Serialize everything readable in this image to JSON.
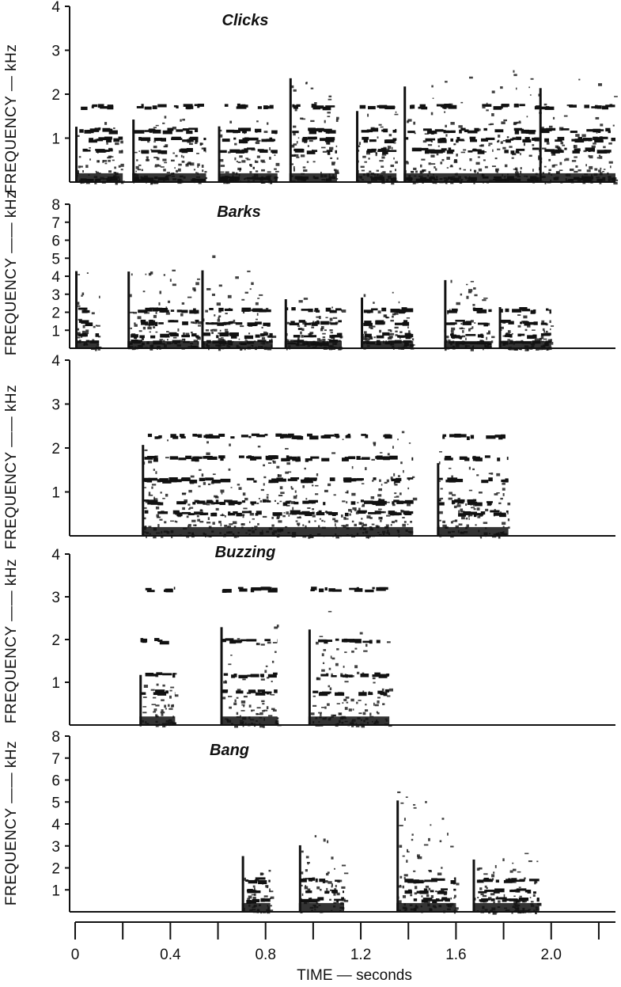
{
  "chart_data": [
    {
      "type": "heatmap",
      "title": "Clicks",
      "ylabel": "FREQUENCY — kHz",
      "ylim": [
        0,
        4
      ],
      "yticks": [
        1,
        2,
        3,
        4
      ],
      "xlim": [
        0,
        2.27
      ],
      "segments": [
        [
          0.0,
          0.2
        ],
        [
          0.24,
          0.55
        ],
        [
          0.6,
          0.85
        ],
        [
          0.9,
          1.1
        ],
        [
          1.18,
          1.35
        ],
        [
          1.38,
          1.95
        ],
        [
          1.95,
          2.27
        ]
      ],
      "bands_khz": [
        0.1,
        0.75,
        1.0,
        1.2,
        1.75
      ]
    },
    {
      "type": "heatmap",
      "title": "Barks",
      "ylabel": "FREQUENCY —— kHz",
      "ylim": [
        0,
        8
      ],
      "yticks": [
        1,
        2,
        3,
        4,
        5,
        6,
        7,
        8
      ],
      "xlim": [
        0,
        2.27
      ],
      "segments": [
        [
          0.0,
          0.1
        ],
        [
          0.22,
          0.52
        ],
        [
          0.53,
          0.83
        ],
        [
          0.88,
          1.12
        ],
        [
          1.2,
          1.42
        ],
        [
          1.55,
          1.75
        ],
        [
          1.78,
          2.0
        ]
      ],
      "bands_khz": [
        0.4,
        0.8,
        1.5,
        2.2
      ]
    },
    {
      "type": "heatmap",
      "title": "",
      "ylabel": "FREQUENCY —— kHz",
      "ylim": [
        0,
        4
      ],
      "yticks": [
        1,
        2,
        3,
        4
      ],
      "xlim": [
        0,
        2.27
      ],
      "segments": [
        [
          0.28,
          1.42
        ],
        [
          1.52,
          1.82
        ]
      ],
      "bands_khz": [
        0.55,
        0.8,
        1.3,
        1.8,
        2.3
      ]
    },
    {
      "type": "heatmap",
      "title": "Buzzing",
      "ylabel": "FREQUENCY —— kHz",
      "ylim": [
        0,
        4
      ],
      "yticks": [
        1,
        2,
        3,
        4
      ],
      "xlim": [
        0,
        2.27
      ],
      "segments": [
        [
          0.27,
          0.42
        ],
        [
          0.61,
          0.85
        ],
        [
          0.98,
          1.32
        ]
      ],
      "bands_khz": [
        0.8,
        1.2,
        2.0,
        3.2
      ]
    },
    {
      "type": "heatmap",
      "title": "Bang",
      "ylabel": "FREQUENCY —— kHz",
      "ylim": [
        0,
        8
      ],
      "yticks": [
        1,
        2,
        3,
        4,
        5,
        6,
        7,
        8
      ],
      "xlim": [
        0,
        2.27
      ],
      "segments": [
        [
          0.7,
          0.82
        ],
        [
          0.94,
          1.13
        ],
        [
          1.35,
          1.6
        ],
        [
          1.67,
          1.95
        ]
      ],
      "bands_khz": [
        0.6,
        1.0,
        1.5
      ]
    }
  ],
  "x_axis": {
    "label": "TIME — seconds",
    "ticks": [
      "0",
      "0.4",
      "0.8",
      "1.2",
      "1.6",
      "2.0"
    ],
    "tick_values": [
      0,
      0.4,
      0.8,
      1.2,
      1.6,
      2.0
    ],
    "minor_values": [
      0.2,
      0.6,
      1.0,
      1.4,
      1.8,
      2.2
    ],
    "range": [
      0,
      2.27
    ]
  }
}
